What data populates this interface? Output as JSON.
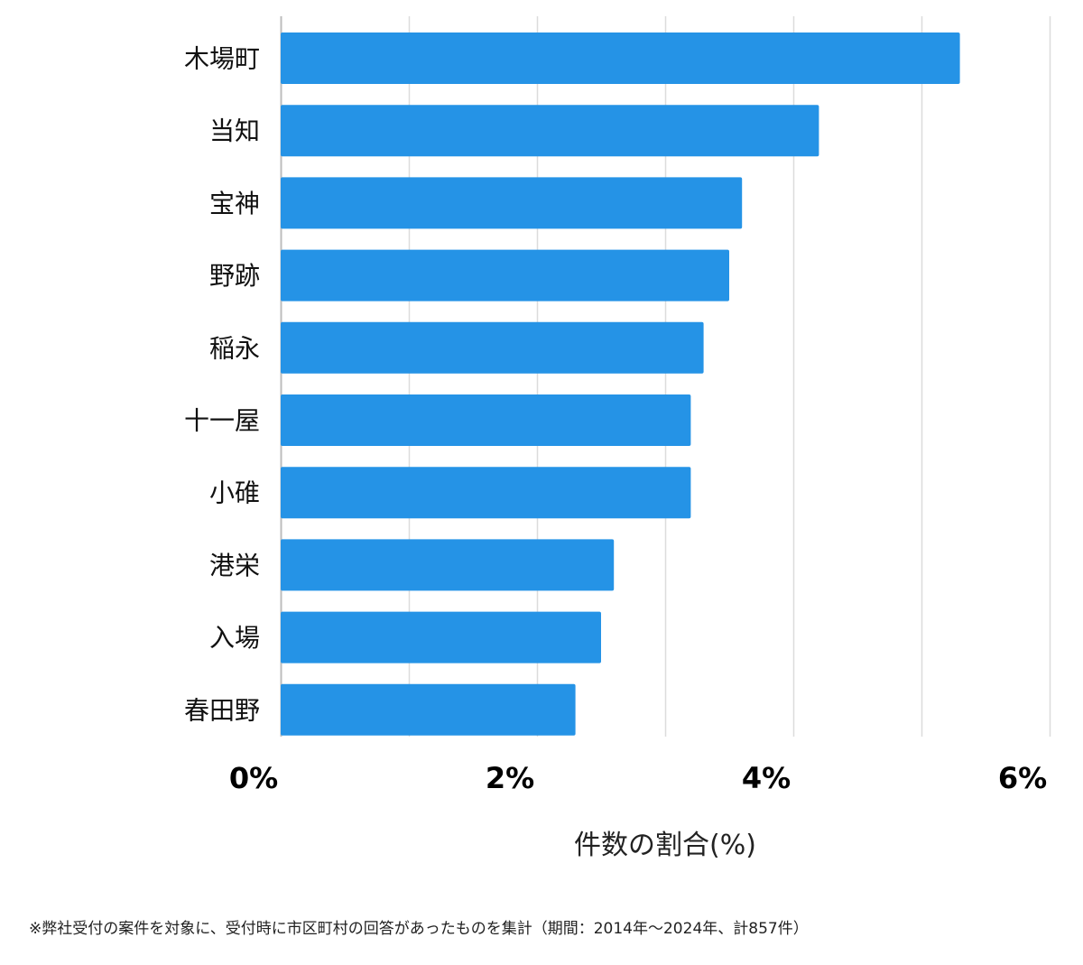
{
  "chart_data": {
    "type": "bar",
    "orientation": "horizontal",
    "categories": [
      "木場町",
      "当知",
      "宝神",
      "野跡",
      "稲永",
      "十一屋",
      "小碓",
      "港栄",
      "入場",
      "春田野"
    ],
    "values": [
      5.3,
      4.2,
      3.6,
      3.5,
      3.3,
      3.2,
      3.2,
      2.6,
      2.5,
      2.3
    ],
    "xlabel": "件数の割合(%)",
    "ylabel": "",
    "xlim": [
      0,
      6
    ],
    "x_ticks": [
      {
        "value": 0,
        "label": "0%"
      },
      {
        "value": 2,
        "label": "2%"
      },
      {
        "value": 4,
        "label": "4%"
      },
      {
        "value": 6,
        "label": "6%"
      }
    ],
    "grid": true,
    "bar_color": "#2593E6"
  },
  "footnote": "※弊社受付の案件を対象に、受付時に市区町村の回答があったものを集計（期間：2014年〜2024年、計857件）"
}
